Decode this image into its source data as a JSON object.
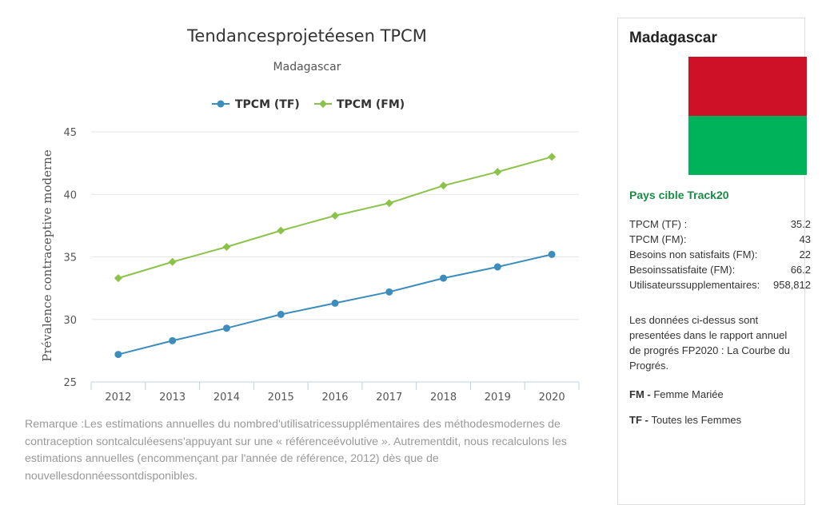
{
  "chart_data": {
    "type": "line",
    "title": "Tendancesprojetéesen TPCM",
    "subtitle": "Madagascar",
    "ylabel": "Prévalence contraceptive moderne",
    "xlabel": "",
    "x": [
      "2012",
      "2013",
      "2014",
      "2015",
      "2016",
      "2017",
      "2018",
      "2019",
      "2020"
    ],
    "ylim": [
      25,
      45
    ],
    "yticks": [
      25,
      30,
      35,
      40,
      45
    ],
    "grid": true,
    "legend": "top-center",
    "series": [
      {
        "name": "TPCM (TF)",
        "color": "#3c8dbc",
        "marker": "circle",
        "values": [
          27.2,
          28.3,
          29.3,
          30.4,
          31.3,
          32.2,
          33.3,
          34.2,
          35.2
        ]
      },
      {
        "name": "TPCM (FM)",
        "color": "#8bc34a",
        "marker": "diamond",
        "values": [
          33.3,
          34.6,
          35.8,
          37.1,
          38.3,
          39.3,
          40.7,
          41.8,
          43.0
        ]
      }
    ]
  },
  "note": "Remarque :Les estimations annuelles du nombred'utilisatricessupplémentaires des méthodesmodernes de contraception sontcalculéesens'appuyant sur une « référenceévolutive ». Autrementdit, nous recalculons les estimations annuelles (encommençant par l'année de référence, 2012) dès que de nouvellesdonnéessontdisponibles.",
  "panel": {
    "country": "Madagascar",
    "flag_colors": {
      "top": "#cf1127",
      "bottom": "#00b35a"
    },
    "target_label": "Pays cible Track20",
    "stats": [
      {
        "label": "TPCM (TF) :",
        "value": "35.2"
      },
      {
        "label": "TPCM (FM):",
        "value": "43"
      },
      {
        "label": "Besoins non satisfaits (FM):",
        "value": "22"
      },
      {
        "label": "Besoinssatisfaite (FM):",
        "value": "66.2"
      },
      {
        "label": "Utilisateurssupplementaires:",
        "value": "958,812"
      }
    ],
    "description": "Les données ci-dessus sont presentées dans le rapport annuel de progrés FP2020 : La Courbe du Progrés.",
    "definitions": [
      {
        "abbr": "FM",
        "sep": " - ",
        "text": "Femme Mariée"
      },
      {
        "abbr": "TF",
        "sep": " - ",
        "text": "Toutes les Femmes"
      }
    ]
  }
}
